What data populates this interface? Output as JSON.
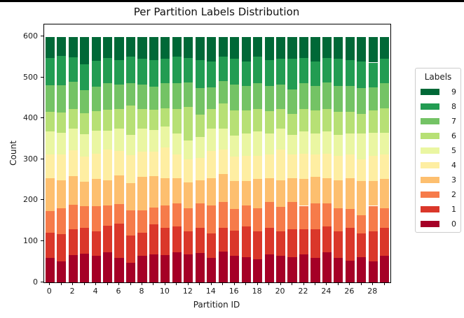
{
  "window": {
    "top_border_color": "#000000"
  },
  "chart_data": {
    "type": "bar",
    "stacked": true,
    "title": "Per Partition Labels Distribution",
    "xlabel": "Partition ID",
    "ylabel": "Count",
    "x": [
      0,
      1,
      2,
      3,
      4,
      5,
      6,
      7,
      8,
      9,
      10,
      11,
      12,
      13,
      14,
      15,
      16,
      17,
      18,
      19,
      20,
      21,
      22,
      23,
      24,
      25,
      26,
      27,
      28,
      29
    ],
    "x_tick_labels": [
      "0",
      "2",
      "4",
      "6",
      "8",
      "10",
      "12",
      "14",
      "16",
      "18",
      "20",
      "22",
      "24",
      "26",
      "28"
    ],
    "y_ticks": [
      0,
      100,
      200,
      300,
      400,
      500,
      600
    ],
    "ylim": [
      0,
      630
    ],
    "bar_total": 600,
    "grid": false,
    "legend": {
      "title": "Labels",
      "position": "right",
      "entries": [
        {
          "label": "9",
          "color": "#006837"
        },
        {
          "label": "8",
          "color": "#229c52"
        },
        {
          "label": "7",
          "color": "#74c365"
        },
        {
          "label": "6",
          "color": "#b7e075"
        },
        {
          "label": "5",
          "color": "#eaf6a2"
        },
        {
          "label": "4",
          "color": "#feeea2"
        },
        {
          "label": "3",
          "color": "#fdbf6f"
        },
        {
          "label": "2",
          "color": "#f67b4a"
        },
        {
          "label": "1",
          "color": "#da372a"
        },
        {
          "label": "0",
          "color": "#a50026"
        }
      ]
    },
    "series": [
      {
        "name": "0",
        "color": "#a50026",
        "values": [
          59,
          51,
          67,
          70,
          65,
          73,
          60,
          48,
          65,
          68,
          67,
          73,
          68,
          71,
          59,
          76,
          65,
          62,
          56,
          68,
          65,
          62,
          68,
          59,
          73,
          59,
          53,
          62,
          51,
          65
        ]
      },
      {
        "name": "1",
        "color": "#da372a",
        "values": [
          62,
          67,
          63,
          63,
          59,
          66,
          83,
          66,
          57,
          74,
          66,
          63,
          57,
          62,
          60,
          57,
          62,
          74,
          69,
          65,
          60,
          68,
          62,
          71,
          63,
          66,
          80,
          57,
          74,
          68
        ]
      },
      {
        "name": "2",
        "color": "#f67b4a",
        "values": [
          53,
          63,
          59,
          53,
          62,
          48,
          48,
          62,
          54,
          40,
          54,
          57,
          56,
          60,
          68,
          63,
          52,
          51,
          56,
          63,
          59,
          66,
          57,
          63,
          57,
          56,
          46,
          45,
          62,
          48
        ]
      },
      {
        "name": "3",
        "color": "#fdbf6f",
        "values": [
          80,
          69,
          71,
          60,
          66,
          63,
          71,
          66,
          82,
          77,
          68,
          62,
          63,
          57,
          68,
          68,
          68,
          60,
          72,
          59,
          66,
          59,
          66,
          65,
          62,
          69,
          76,
          83,
          60,
          72
        ]
      },
      {
        "name": "4",
        "color": "#feeea2",
        "values": [
          59,
          63,
          62,
          62,
          62,
          74,
          59,
          68,
          61,
          60,
          74,
          57,
          57,
          54,
          66,
          60,
          60,
          62,
          56,
          57,
          74,
          57,
          62,
          54,
          60,
          59,
          57,
          54,
          62,
          59
        ]
      },
      {
        "name": "5",
        "color": "#eaf6a2",
        "values": [
          56,
          52,
          54,
          54,
          57,
          46,
          54,
          51,
          56,
          54,
          52,
          51,
          45,
          51,
          54,
          51,
          51,
          54,
          60,
          51,
          51,
          49,
          54,
          51,
          54,
          52,
          51,
          62,
          57,
          54
        ]
      },
      {
        "name": "6",
        "color": "#b7e075",
        "values": [
          48,
          50,
          48,
          51,
          48,
          51,
          49,
          71,
          49,
          48,
          45,
          60,
          83,
          54,
          48,
          62,
          62,
          57,
          54,
          55,
          48,
          51,
          54,
          57,
          54,
          56,
          54,
          49,
          54,
          60
        ]
      },
      {
        "name": "7",
        "color": "#74c365",
        "values": [
          64,
          67,
          66,
          57,
          59,
          65,
          59,
          54,
          59,
          57,
          60,
          63,
          60,
          65,
          54,
          54,
          63,
          60,
          63,
          62,
          60,
          60,
          63,
          60,
          66,
          63,
          63,
          62,
          57,
          60
        ]
      },
      {
        "name": "8",
        "color": "#229c52",
        "values": [
          67,
          71,
          59,
          62,
          63,
          62,
          60,
          66,
          63,
          65,
          60,
          65,
          59,
          69,
          63,
          60,
          63,
          60,
          65,
          63,
          63,
          74,
          62,
          60,
          59,
          66,
          63,
          66,
          60,
          60
        ]
      },
      {
        "name": "9",
        "color": "#006837",
        "values": [
          52,
          47,
          51,
          68,
          59,
          52,
          57,
          48,
          54,
          57,
          54,
          49,
          52,
          57,
          60,
          49,
          54,
          60,
          49,
          57,
          54,
          54,
          52,
          60,
          52,
          54,
          57,
          60,
          63,
          54
        ]
      }
    ]
  }
}
